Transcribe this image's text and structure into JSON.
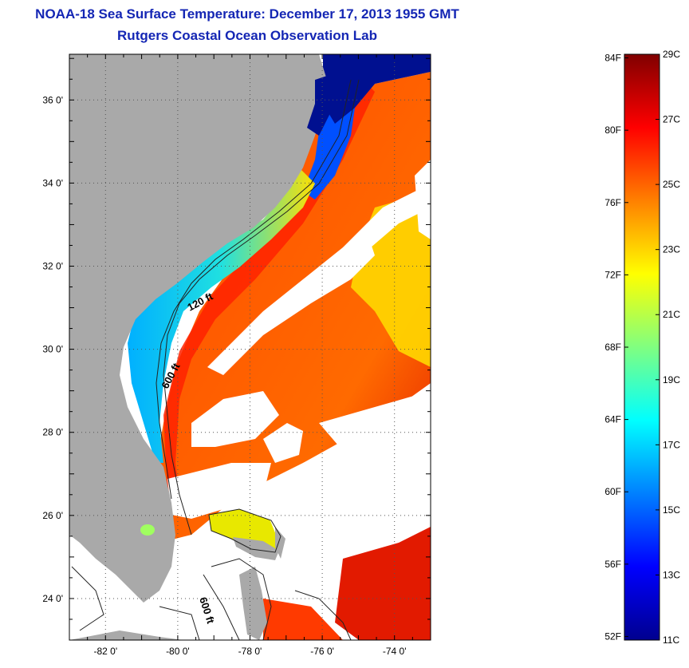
{
  "header": {
    "title": "NOAA-18 Sea Surface Temperature:  December 17, 2013 1955 GMT",
    "subtitle": "Rutgers Coastal Ocean Observation Lab"
  },
  "map": {
    "lat_ticks": [
      {
        "value": 36,
        "label": "36 0'"
      },
      {
        "value": 34,
        "label": "34 0'"
      },
      {
        "value": 32,
        "label": "32 0'"
      },
      {
        "value": 30,
        "label": "30 0'"
      },
      {
        "value": 28,
        "label": "28 0'"
      },
      {
        "value": 26,
        "label": "26 0'"
      },
      {
        "value": 24,
        "label": "24 0'"
      }
    ],
    "lon_ticks": [
      {
        "value": -82,
        "label": "-82 0'"
      },
      {
        "value": -80,
        "label": "-80 0'"
      },
      {
        "value": -78,
        "label": "-78 0'"
      },
      {
        "value": -76,
        "label": "-76 0'"
      },
      {
        "value": -74,
        "label": "-74 0'"
      }
    ],
    "lat_range": [
      23,
      37.1
    ],
    "lon_range": [
      -83,
      -73
    ],
    "contour_labels": [
      {
        "text": "120 ft"
      },
      {
        "text": "600 ft"
      },
      {
        "text": "600 ft"
      }
    ],
    "colors": {
      "land": "#a9a9a9",
      "cloud": "#ffffff",
      "gridline": "#555555"
    }
  },
  "colorbar": {
    "f_ticks": [
      "84F",
      "80F",
      "76F",
      "72F",
      "68F",
      "64F",
      "60F",
      "56F",
      "52F"
    ],
    "c_ticks": [
      "29C",
      "27C",
      "25C",
      "23C",
      "21C",
      "19C",
      "17C",
      "15C",
      "13C",
      "11C"
    ],
    "c_range": [
      11,
      29
    ],
    "colormap": [
      "#00008f",
      "#0000ff",
      "#0080ff",
      "#00ffff",
      "#80ff80",
      "#ffff00",
      "#ff8000",
      "#ff0000",
      "#800000"
    ]
  }
}
